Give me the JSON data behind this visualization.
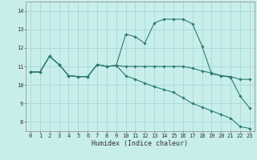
{
  "title": "",
  "xlabel": "Humidex (Indice chaleur)",
  "bg_color": "#c8eeec",
  "line_color": "#2e7d6e",
  "grid_color": "#a0d4d0",
  "xlim": [
    -0.5,
    23.5
  ],
  "ylim": [
    7.5,
    14.5
  ],
  "xticks": [
    0,
    1,
    2,
    3,
    4,
    5,
    6,
    7,
    8,
    9,
    10,
    11,
    12,
    13,
    14,
    15,
    16,
    17,
    18,
    19,
    20,
    21,
    22,
    23
  ],
  "yticks": [
    8,
    9,
    10,
    11,
    12,
    13,
    14
  ],
  "line1_x": [
    0,
    1,
    2,
    3,
    4,
    5,
    6,
    7,
    8,
    9,
    10,
    11,
    12,
    13,
    14,
    15,
    16,
    17,
    18,
    19,
    20,
    21,
    22,
    23
  ],
  "line1_y": [
    10.7,
    10.7,
    11.55,
    11.1,
    10.5,
    10.45,
    10.45,
    11.1,
    11.0,
    11.05,
    11.0,
    11.0,
    11.0,
    11.0,
    11.0,
    11.0,
    11.0,
    10.9,
    10.75,
    10.65,
    10.5,
    10.45,
    10.3,
    10.3
  ],
  "line2_x": [
    0,
    1,
    2,
    3,
    4,
    5,
    6,
    7,
    8,
    9,
    10,
    11,
    12,
    13,
    14,
    15,
    16,
    17,
    18,
    19,
    20,
    21,
    22,
    23
  ],
  "line2_y": [
    10.7,
    10.7,
    11.55,
    11.1,
    10.5,
    10.45,
    10.45,
    11.1,
    11.0,
    11.05,
    12.75,
    12.6,
    12.25,
    13.35,
    13.55,
    13.55,
    13.55,
    13.3,
    12.1,
    10.6,
    10.5,
    10.4,
    9.4,
    8.75
  ],
  "line3_x": [
    0,
    1,
    2,
    3,
    4,
    5,
    6,
    7,
    8,
    9,
    10,
    11,
    12,
    13,
    14,
    15,
    16,
    17,
    18,
    19,
    20,
    21,
    22,
    23
  ],
  "line3_y": [
    10.7,
    10.7,
    11.55,
    11.1,
    10.5,
    10.45,
    10.45,
    11.1,
    11.0,
    11.05,
    10.5,
    10.3,
    10.1,
    9.9,
    9.75,
    9.6,
    9.3,
    9.0,
    8.8,
    8.6,
    8.4,
    8.2,
    7.75,
    7.65
  ],
  "marker_size": 1.8,
  "line_width": 0.8,
  "tick_fontsize": 5.0,
  "xlabel_fontsize": 6.0
}
